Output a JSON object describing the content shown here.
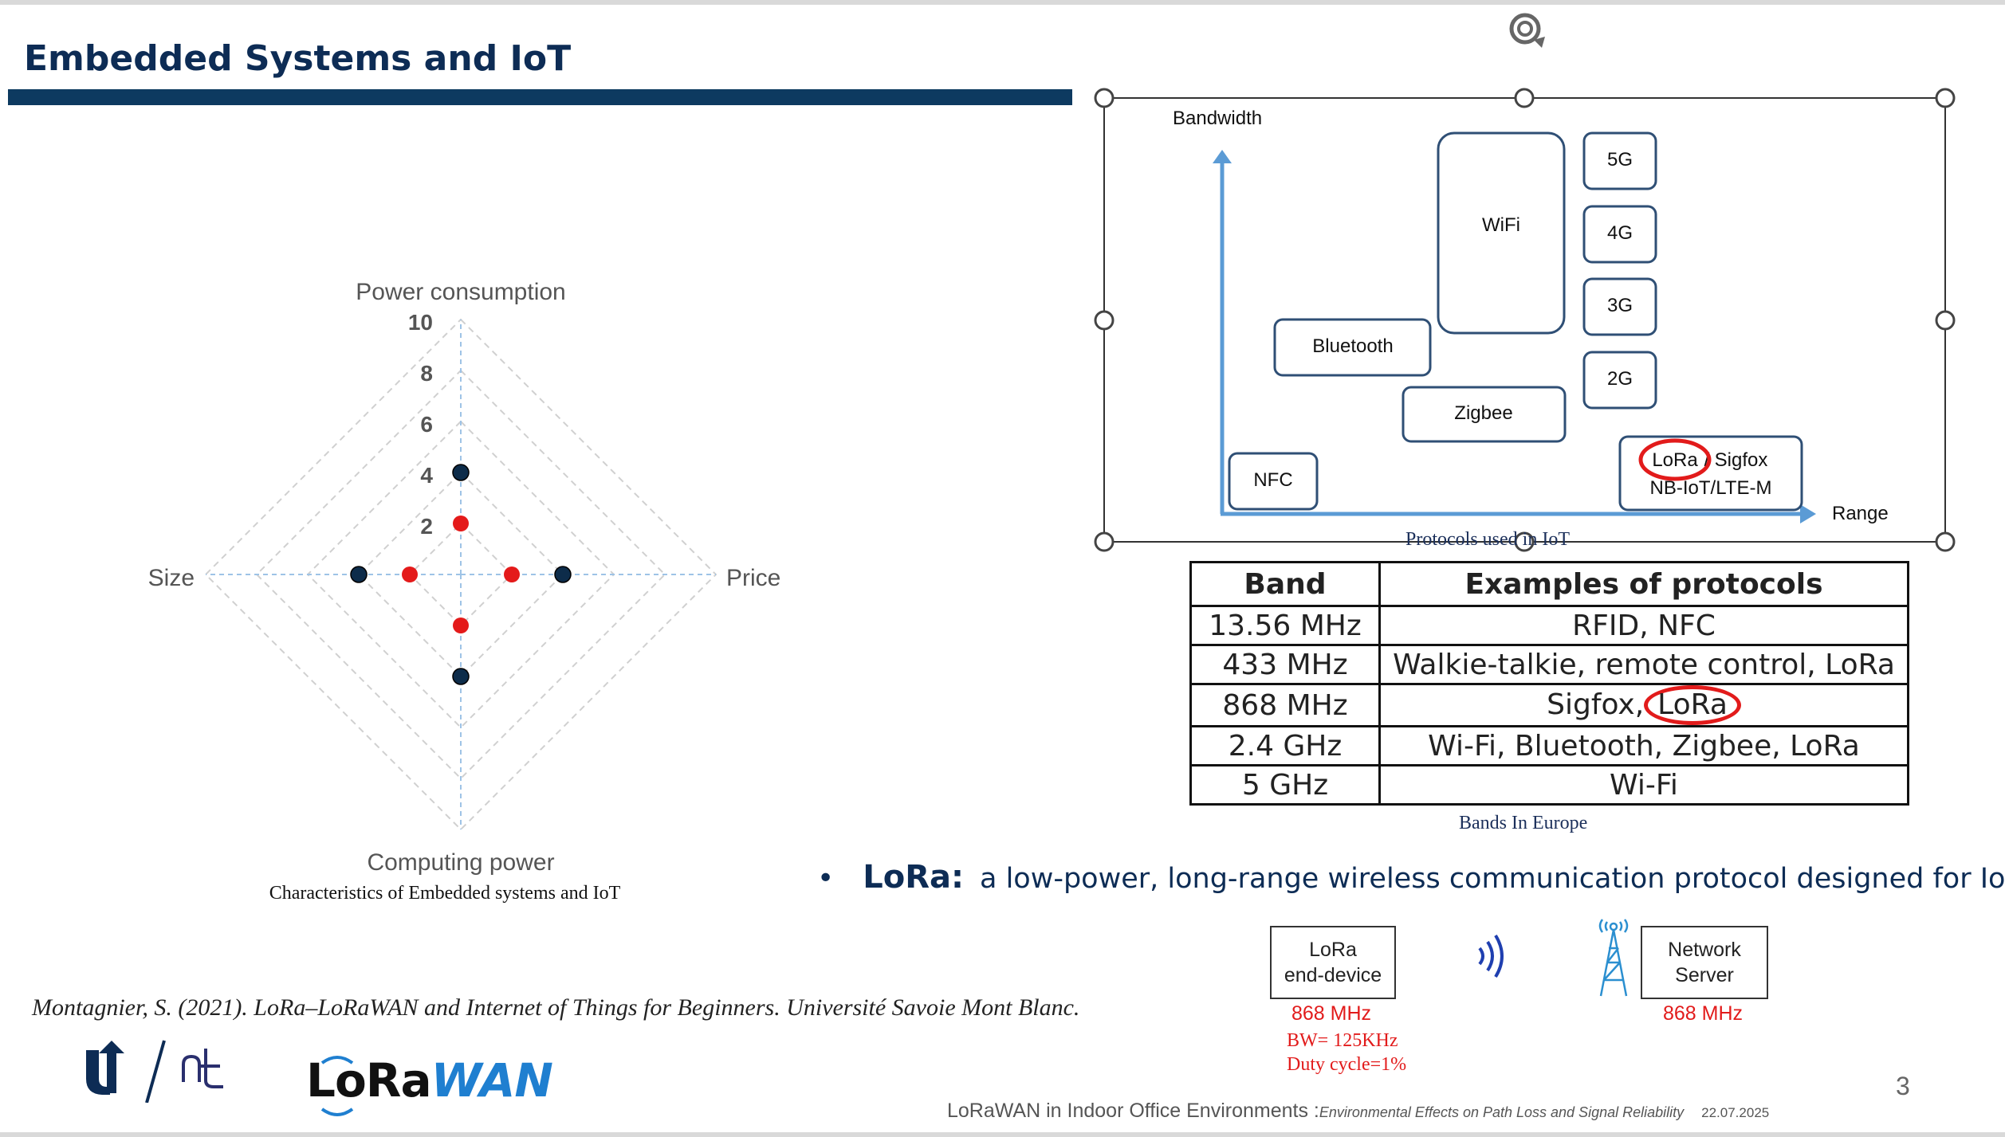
{
  "slide": {
    "title": "Embedded Systems and IoT",
    "page_number": "3",
    "footer": {
      "main": "LoRaWAN in Indoor Office Environments :",
      "subtitle": "Environmental Effects on Path Loss and Signal Reliability",
      "date": "22.07.2025"
    },
    "citation": "Montagnier, S. (2021). LoRa–LoRaWAN and Internet of Things for Beginners. Université Savoie Mont Blanc."
  },
  "radar": {
    "caption": "Characteristics of Embedded systems and IoT",
    "axes": {
      "top": "Power consumption",
      "left": "Size",
      "right": "Price",
      "bottom": "Computing power"
    },
    "tick_labels": [
      "10",
      "8",
      "6",
      "4",
      "2"
    ]
  },
  "chart_data": {
    "type": "radar",
    "axes": [
      "Power consumption",
      "Price",
      "Computing power",
      "Size"
    ],
    "rlim": [
      0,
      10
    ],
    "ticks": [
      2,
      4,
      6,
      8,
      10
    ],
    "series": [
      {
        "color": "#0d2c4a",
        "values": [
          4,
          4,
          4,
          4
        ]
      },
      {
        "color": "#e41a1a",
        "values": [
          2,
          2,
          2,
          2
        ]
      }
    ],
    "grid": true
  },
  "protocols_diagram": {
    "caption": "Protocols used in IoT",
    "y_axis_label": "Bandwidth",
    "x_axis_label": "Range",
    "boxes": {
      "wifi": "WiFi",
      "g5": "5G",
      "g4": "4G",
      "g3": "3G",
      "g2": "2G",
      "bluetooth": "Bluetooth",
      "zigbee": "Zigbee",
      "nfc": "NFC",
      "lora": "LoRa",
      "lora_sep": "/",
      "sigfox": "Sigfox",
      "nbiot": "NB-IoT/LTE-M"
    }
  },
  "bands_table": {
    "caption": "Bands In Europe",
    "headers": [
      "Band",
      "Examples of protocols"
    ],
    "rows": [
      {
        "band": "13.56 MHz",
        "protocols": "RFID, NFC"
      },
      {
        "band": "433 MHz",
        "protocols": "Walkie-talkie, remote control, LoRa"
      },
      {
        "band": "868 MHz",
        "protocols_a": "Sigfox,",
        "protocols_b": "LoRa"
      },
      {
        "band": "2.4 GHz",
        "protocols": "Wi-Fi, Bluetooth, Zigbee, LoRa"
      },
      {
        "band": "5 GHz",
        "protocols": "Wi-Fi"
      }
    ]
  },
  "bullet": {
    "term": "LoRa:",
    "description": "a low-power, long-range wireless communication protocol designed for IoT"
  },
  "link": {
    "end_device_line1": "LoRa",
    "end_device_line2": "end-device",
    "end_device_freq": "868 MHz",
    "bandwidth": "BW= 125KHz",
    "duty_cycle": "Duty cycle=1%",
    "server_line1": "Network",
    "server_line2": "Server",
    "server_freq": "868 MHz"
  },
  "logos": {
    "lorawan_a": "LoRa",
    "lorawan_b": "WAN"
  },
  "colors": {
    "title": "#0d2c55",
    "accent_bar": "#0d3a60",
    "diagram_blue": "#5b9bd5",
    "box_border": "#2f4f75",
    "highlight_red": "#e21b1b"
  }
}
